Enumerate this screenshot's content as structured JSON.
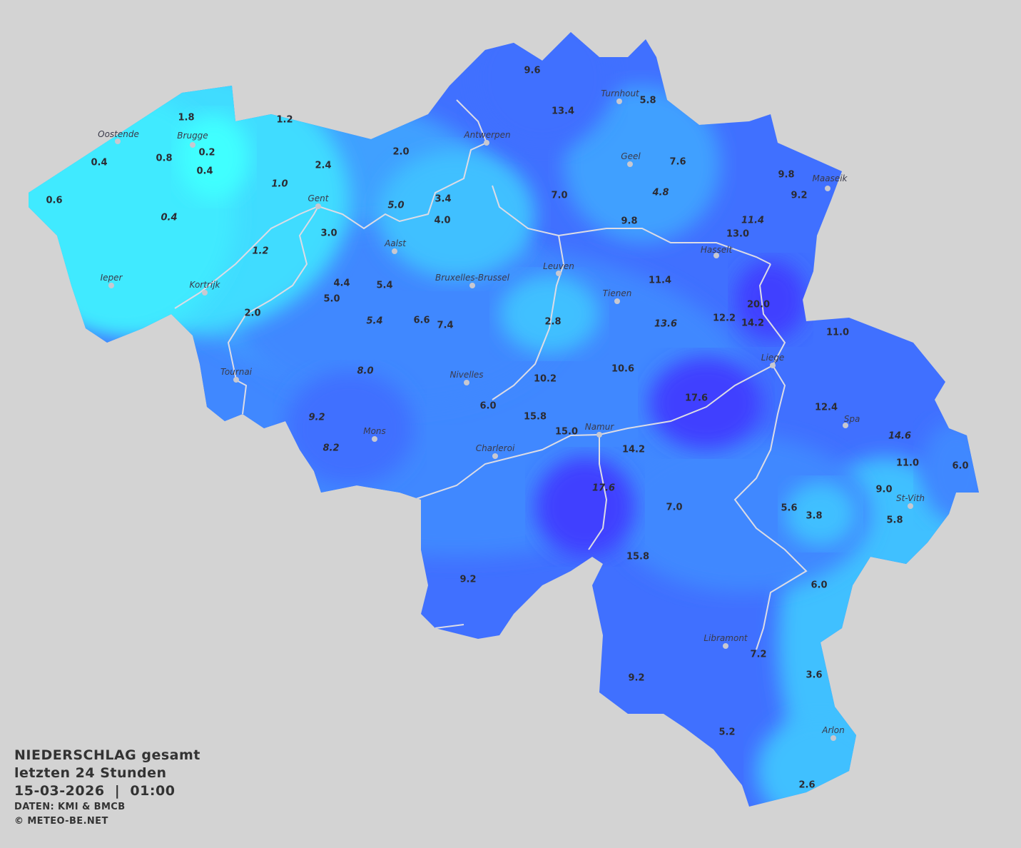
{
  "legend": {
    "title_line1": "NIEDERSCHLAG gesamt",
    "title_line2": "letzten 24 Stunden",
    "datetime": "15-03-2026  |  01:00",
    "source": "DATEN: KMI & BMCB",
    "copyright": "© METEO-BE.NET"
  },
  "map": {
    "background_color": "#d3d3d3",
    "color_scale": [
      "#40ffff",
      "#40eaff",
      "#40dcff",
      "#40c0ff",
      "#40a0ff",
      "#4088ff",
      "#4070ff",
      "#4058ff",
      "#4040ff"
    ],
    "river_color": "#dcdce6",
    "cities": [
      "Oostende",
      "Brugge",
      "Antwerpen",
      "Turnhout",
      "Geel",
      "Maaseik",
      "Gent",
      "Aalst",
      "Hasselt",
      "Leuven",
      "Bruxelles-Brussel",
      "Ieper",
      "Kortrijk",
      "Tienen",
      "Liege",
      "Tournai",
      "Nivelles",
      "Spa",
      "Namur",
      "Mons",
      "Charleroi",
      "St-Vith",
      "Libramont",
      "Arlon"
    ],
    "values": [
      {
        "v": "1.8",
        "i": false
      },
      {
        "v": "1.2",
        "i": false
      },
      {
        "v": "0.2",
        "i": false
      },
      {
        "v": "0.4",
        "i": false
      },
      {
        "v": "0.8",
        "i": false
      },
      {
        "v": "0.4",
        "i": false
      },
      {
        "v": "0.6",
        "i": false
      },
      {
        "v": "0.4",
        "i": true
      },
      {
        "v": "1.0",
        "i": true
      },
      {
        "v": "2.4",
        "i": false
      },
      {
        "v": "2.0",
        "i": false
      },
      {
        "v": "3.4",
        "i": false
      },
      {
        "v": "4.0",
        "i": false
      },
      {
        "v": "5.0",
        "i": true
      },
      {
        "v": "3.0",
        "i": false
      },
      {
        "v": "1.2",
        "i": true
      },
      {
        "v": "4.4",
        "i": false
      },
      {
        "v": "5.4",
        "i": false
      },
      {
        "v": "5.0",
        "i": false
      },
      {
        "v": "2.0",
        "i": false
      },
      {
        "v": "5.4",
        "i": true
      },
      {
        "v": "6.6",
        "i": false
      },
      {
        "v": "7.4",
        "i": false
      },
      {
        "v": "2.8",
        "i": false
      },
      {
        "v": "8.0",
        "i": true
      },
      {
        "v": "9.2",
        "i": true
      },
      {
        "v": "8.2",
        "i": true
      },
      {
        "v": "9.6",
        "i": false
      },
      {
        "v": "13.4",
        "i": false
      },
      {
        "v": "5.8",
        "i": false
      },
      {
        "v": "7.6",
        "i": false
      },
      {
        "v": "7.0",
        "i": false
      },
      {
        "v": "4.8",
        "i": true
      },
      {
        "v": "9.8",
        "i": false
      },
      {
        "v": "9.2",
        "i": false
      },
      {
        "v": "11.4",
        "i": true
      },
      {
        "v": "9.8",
        "i": false
      },
      {
        "v": "13.0",
        "i": false
      },
      {
        "v": "11.4",
        "i": false
      },
      {
        "v": "20.0",
        "i": false
      },
      {
        "v": "13.6",
        "i": true
      },
      {
        "v": "12.2",
        "i": false
      },
      {
        "v": "14.2",
        "i": false
      },
      {
        "v": "11.0",
        "i": false
      },
      {
        "v": "10.6",
        "i": false
      },
      {
        "v": "10.2",
        "i": false
      },
      {
        "v": "6.0",
        "i": false
      },
      {
        "v": "17.6",
        "i": false
      },
      {
        "v": "15.8",
        "i": false
      },
      {
        "v": "15.0",
        "i": false
      },
      {
        "v": "12.4",
        "i": false
      },
      {
        "v": "14.6",
        "i": true
      },
      {
        "v": "14.2",
        "i": false
      },
      {
        "v": "11.0",
        "i": false
      },
      {
        "v": "6.0",
        "i": false
      },
      {
        "v": "9.0",
        "i": false
      },
      {
        "v": "17.6",
        "i": true
      },
      {
        "v": "7.0",
        "i": false
      },
      {
        "v": "5.6",
        "i": false
      },
      {
        "v": "3.8",
        "i": false
      },
      {
        "v": "5.8",
        "i": false
      },
      {
        "v": "15.8",
        "i": false
      },
      {
        "v": "9.2",
        "i": false
      },
      {
        "v": "6.0",
        "i": false
      },
      {
        "v": "7.2",
        "i": false
      },
      {
        "v": "9.2",
        "i": false
      },
      {
        "v": "3.6",
        "i": false
      },
      {
        "v": "5.2",
        "i": false
      },
      {
        "v": "2.6",
        "i": false
      }
    ]
  }
}
